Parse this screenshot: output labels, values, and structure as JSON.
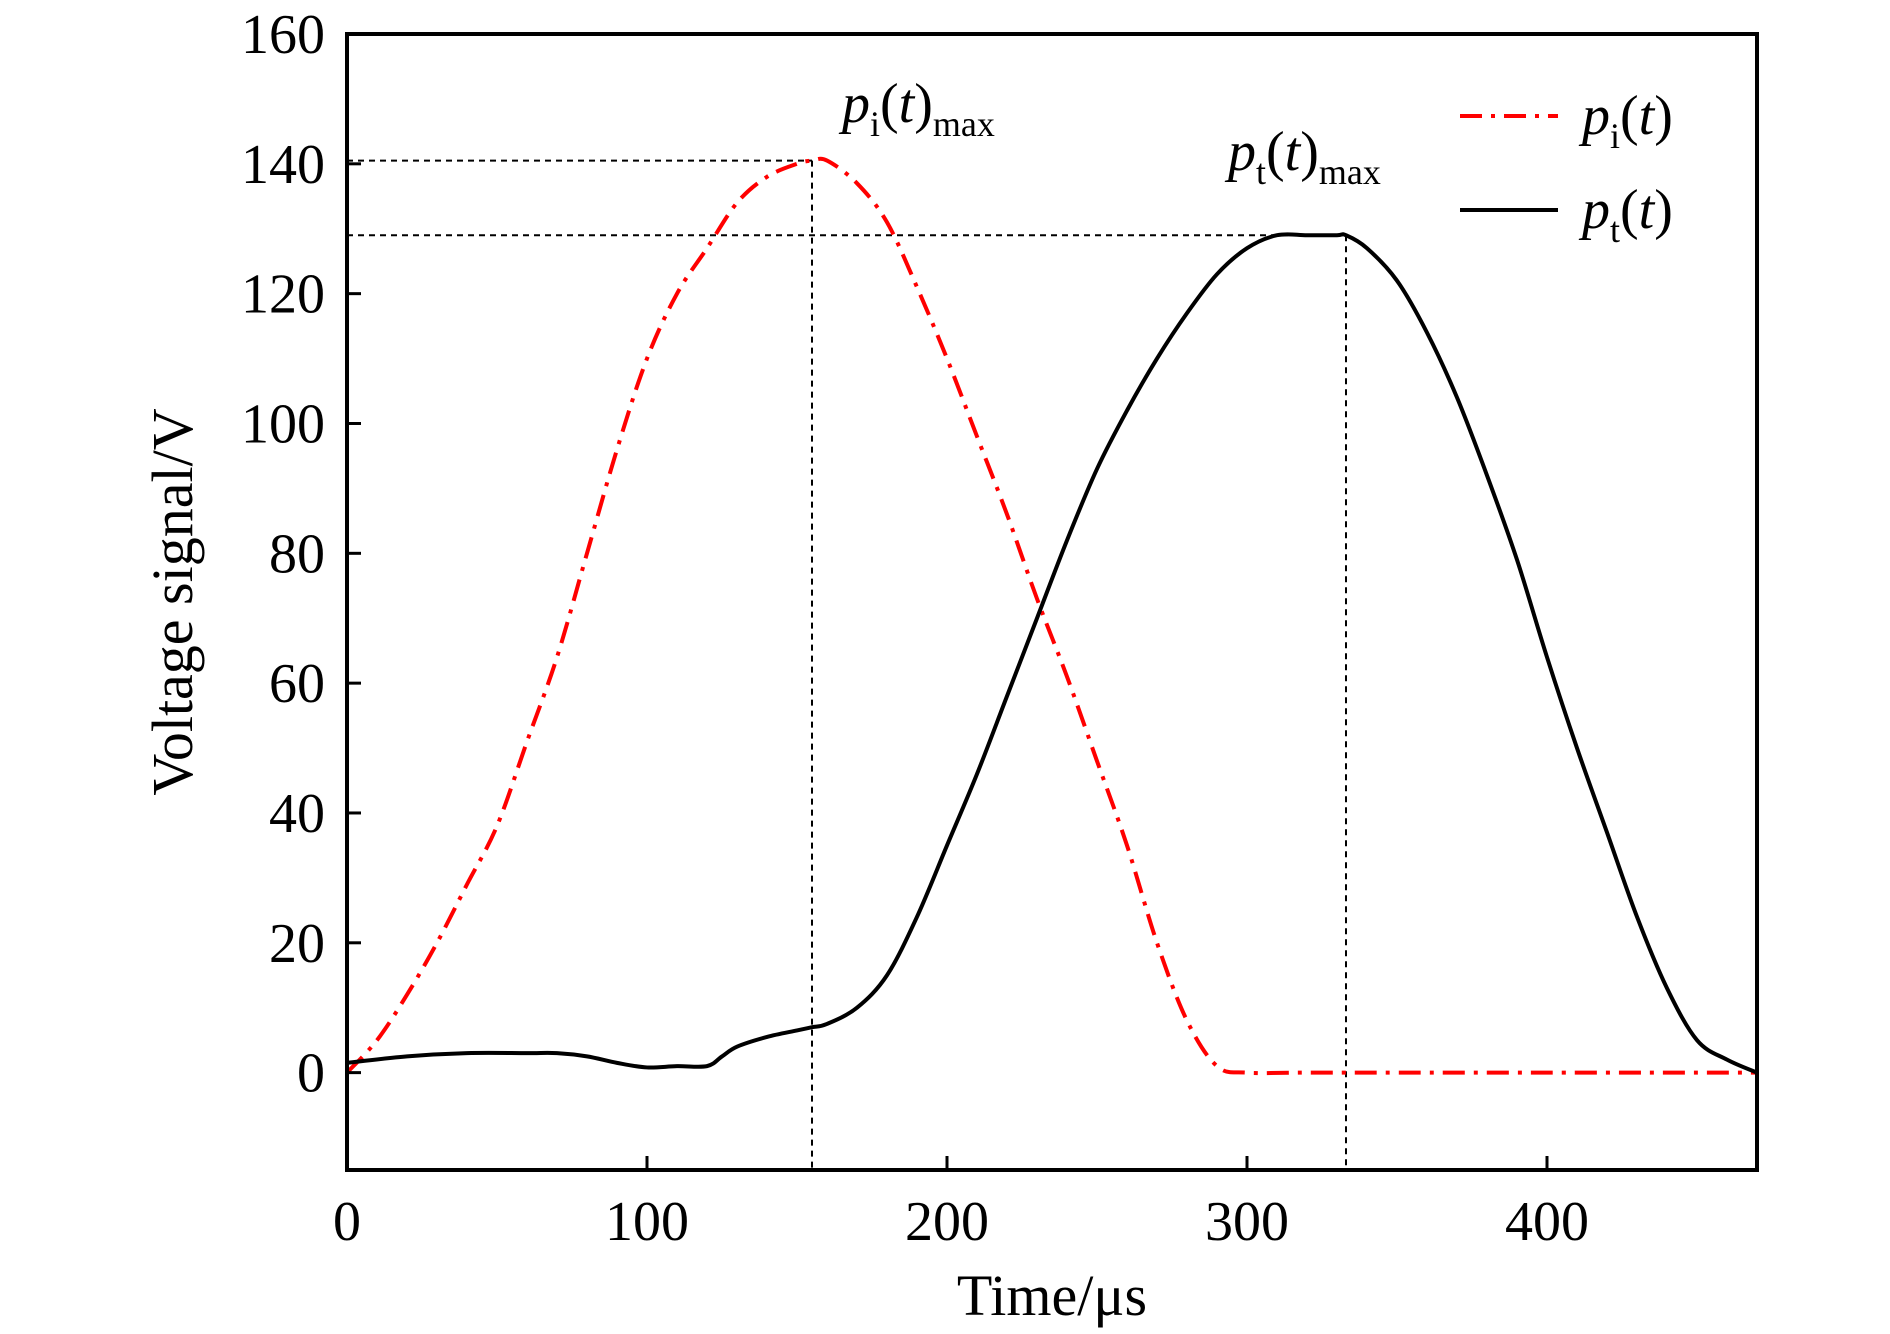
{
  "chart_data": {
    "type": "line",
    "xlabel": "Time/μs",
    "ylabel": "Voltage signal/V",
    "xlim": [
      0,
      470
    ],
    "ylim": [
      -15,
      160
    ],
    "xticks": [
      0,
      100,
      200,
      300,
      400
    ],
    "yticks": [
      0,
      20,
      40,
      60,
      80,
      100,
      120,
      140,
      160
    ],
    "grid": false,
    "legend": "top-right",
    "series": [
      {
        "id": "pi",
        "legend_main": "p",
        "legend_sub": "i",
        "legend_tail": "(t)",
        "color": "#ff0000",
        "style": "dash-dot",
        "x": [
          0,
          10,
          20,
          30,
          40,
          50,
          60,
          70,
          80,
          90,
          100,
          110,
          120,
          130,
          140,
          150,
          155,
          160,
          170,
          180,
          190,
          200,
          210,
          220,
          230,
          240,
          250,
          260,
          270,
          280,
          290,
          300,
          320,
          350,
          400,
          450,
          470
        ],
        "y": [
          0,
          5,
          12,
          20,
          29,
          38,
          51,
          64,
          80,
          96,
          110,
          120,
          127,
          134,
          138,
          140,
          140.5,
          140.5,
          137,
          131,
          121,
          110,
          98,
          86,
          73,
          61,
          48,
          35,
          20,
          8,
          1,
          0,
          0,
          0,
          0,
          0,
          0
        ]
      },
      {
        "id": "pt",
        "legend_main": "p",
        "legend_sub": "t",
        "legend_tail": "(t)",
        "color": "#000000",
        "style": "solid",
        "x": [
          0,
          20,
          40,
          60,
          70,
          80,
          90,
          100,
          110,
          120,
          125,
          130,
          140,
          150,
          155,
          160,
          170,
          180,
          190,
          200,
          210,
          220,
          230,
          240,
          250,
          260,
          270,
          280,
          290,
          300,
          310,
          320,
          330,
          333,
          340,
          350,
          360,
          370,
          380,
          390,
          400,
          410,
          420,
          430,
          440,
          450,
          460,
          470
        ],
        "y": [
          1.5,
          2.5,
          3,
          3,
          3,
          2.5,
          1.5,
          0.8,
          1,
          1,
          2.5,
          4,
          5.5,
          6.5,
          7,
          7.5,
          10,
          15,
          24,
          35,
          46,
          58,
          70,
          82,
          93,
          102,
          110,
          117,
          123,
          127,
          129,
          129,
          129,
          129,
          127,
          122,
          114,
          104,
          92,
          79,
          64,
          50,
          37,
          24,
          13,
          5,
          2,
          0
        ]
      }
    ],
    "annotations": [
      {
        "id": "pimax",
        "main": "p",
        "sub": "i",
        "tail": "(t)",
        "sub2": "max",
        "x": 155,
        "y": 140.5
      },
      {
        "id": "ptmax",
        "main": "p",
        "sub": "t",
        "tail": "(t)",
        "sub2": "max",
        "x": 333,
        "y": 129
      }
    ]
  }
}
